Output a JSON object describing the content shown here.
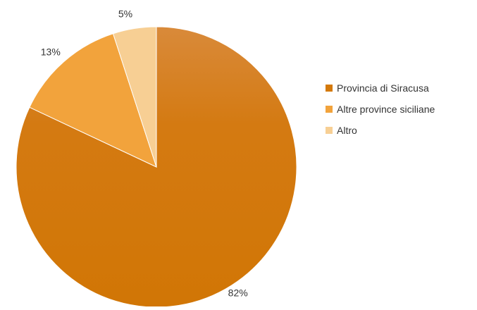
{
  "chart_data": {
    "type": "pie",
    "categories": [
      "Provincia di Siracusa",
      "Altre province siciliane",
      "Altro"
    ],
    "values": [
      82,
      13,
      5
    ],
    "data_labels": [
      "82%",
      "13%",
      "5%"
    ],
    "colors": [
      "#d4790a",
      "#f2a33c",
      "#f7cf94"
    ],
    "start_angle_deg": 0,
    "direction": "clockwise",
    "legend_position": "right"
  }
}
